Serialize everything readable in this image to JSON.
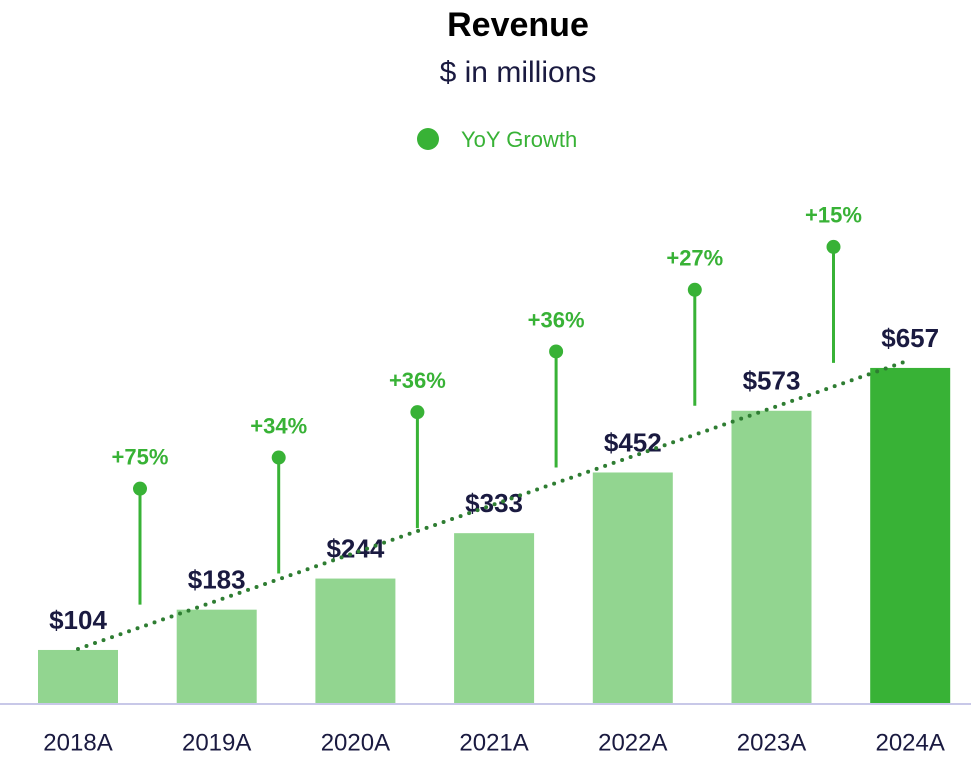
{
  "chart_data": {
    "type": "bar",
    "title": "Revenue",
    "subtitle": "$ in millions",
    "categories": [
      "2018A",
      "2019A",
      "2020A",
      "2021A",
      "2022A",
      "2023A",
      "2024A"
    ],
    "values": [
      104,
      183,
      244,
      333,
      452,
      573,
      657
    ],
    "value_labels": [
      "$104",
      "$183",
      "$244",
      "$333",
      "$452",
      "$573",
      "$657"
    ],
    "colors": [
      "#92d590",
      "#92d590",
      "#92d590",
      "#92d590",
      "#92d590",
      "#92d590",
      "#38b236"
    ],
    "ylim": [
      0,
      700
    ],
    "growth": {
      "name": "YoY Growth",
      "color": "#38b236",
      "values": [
        null,
        75,
        34,
        36,
        36,
        27,
        15
      ],
      "value_labels": [
        null,
        "+75%",
        "+34%",
        "+36%",
        "+36%",
        "+27%",
        "+15%"
      ]
    }
  }
}
